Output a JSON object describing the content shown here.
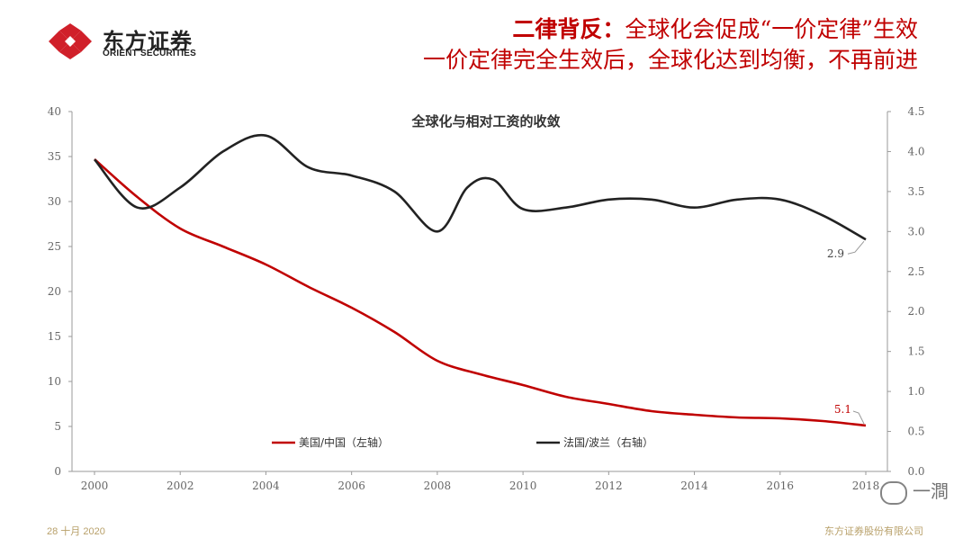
{
  "brand": {
    "name_cn": "东方证券",
    "name_en": "ORIENT SECURITIES",
    "color": "#d0202a"
  },
  "headline": {
    "line1_bold": "二律背反：",
    "line1_rest": "全球化会促成“一价定律”生效",
    "line2": "一价定律完全生效后，全球化达到均衡，不再前进"
  },
  "footer": {
    "date": "28 十月 2020",
    "company": "东方证券股份有限公司"
  },
  "watermark": {
    "text": "一澗"
  },
  "chart_data": {
    "type": "line",
    "title": "全球化与相对工资的收敛",
    "x_ticks": [
      "2000",
      "2002",
      "2004",
      "2006",
      "2008",
      "2010",
      "2012",
      "2014",
      "2016",
      "2018"
    ],
    "xlim": [
      2000,
      2018
    ],
    "y_left": {
      "ticks": [
        "0",
        "5",
        "10",
        "15",
        "20",
        "25",
        "30",
        "35",
        "40"
      ],
      "ylim": [
        0,
        40
      ]
    },
    "y_right": {
      "ticks": [
        "0.0",
        "0.5",
        "1.0",
        "1.5",
        "2.0",
        "2.5",
        "3.0",
        "3.5",
        "4.0",
        "4.5"
      ],
      "ylim": [
        0,
        4.5
      ]
    },
    "series": [
      {
        "name": "美国/中国（左轴）",
        "axis": "left",
        "color": "#c00000",
        "x": [
          2000,
          2001,
          2002,
          2003,
          2004,
          2005,
          2006,
          2007,
          2008,
          2009,
          2010,
          2011,
          2012,
          2013,
          2014,
          2015,
          2016,
          2017,
          2018
        ],
        "values": [
          34.7,
          30.5,
          27.0,
          25.0,
          23.0,
          20.5,
          18.2,
          15.5,
          12.3,
          10.8,
          9.6,
          8.3,
          7.5,
          6.7,
          6.3,
          6.0,
          5.9,
          5.6,
          5.1
        ],
        "end_label": "5.1"
      },
      {
        "name": "法国/波兰（右轴）",
        "axis": "right",
        "color": "#222222",
        "x": [
          2000,
          2001,
          2002,
          2003,
          2004,
          2005,
          2006,
          2007,
          2008,
          2008.7,
          2009.3,
          2010,
          2011,
          2012,
          2013,
          2014,
          2015,
          2016,
          2017,
          2018
        ],
        "values": [
          3.9,
          3.3,
          3.55,
          4.0,
          4.2,
          3.8,
          3.7,
          3.5,
          3.0,
          3.55,
          3.65,
          3.28,
          3.3,
          3.4,
          3.4,
          3.3,
          3.4,
          3.4,
          3.2,
          2.9
        ],
        "end_label": "2.9"
      }
    ],
    "legend_position": "bottom-inside"
  }
}
